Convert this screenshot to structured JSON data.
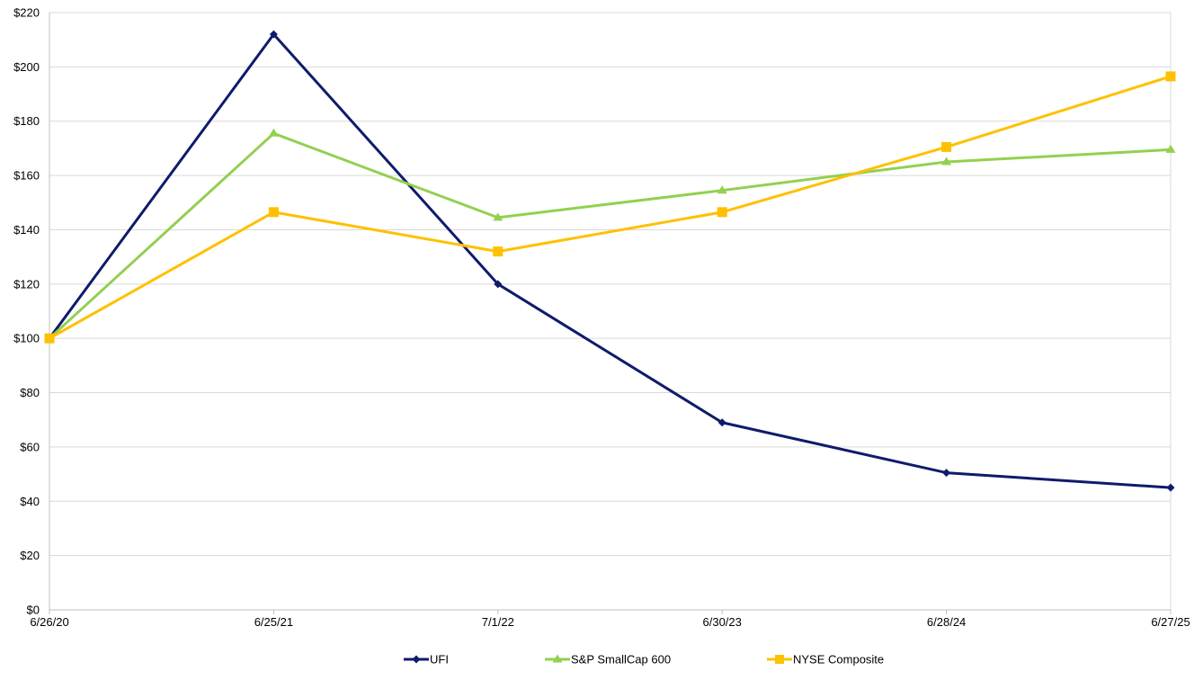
{
  "chart_data": {
    "type": "line",
    "title": "",
    "xlabel": "",
    "ylabel": "",
    "categories": [
      "6/26/20",
      "6/25/21",
      "7/1/22",
      "6/30/23",
      "6/28/24",
      "6/27/25"
    ],
    "ylim": [
      0,
      220
    ],
    "yticks": [
      0,
      20,
      40,
      60,
      80,
      100,
      120,
      140,
      160,
      180,
      200,
      220
    ],
    "ytick_labels": [
      "$0",
      "$20",
      "$40",
      "$60",
      "$80",
      "$100",
      "$120",
      "$140",
      "$160",
      "$180",
      "$200",
      "$220"
    ],
    "grid": true,
    "legend_position": "bottom",
    "series": [
      {
        "name": "UFI",
        "color": "#0f1b6b",
        "marker": "diamond",
        "values": [
          100,
          212,
          120,
          69,
          50.5,
          45
        ]
      },
      {
        "name": "S&P SmallCap 600",
        "color": "#92d050",
        "marker": "triangle",
        "values": [
          100,
          175.5,
          144.5,
          154.5,
          165,
          169.5
        ]
      },
      {
        "name": "NYSE Composite",
        "color": "#ffc000",
        "marker": "square",
        "values": [
          100,
          146.5,
          132,
          146.5,
          170.5,
          196.5
        ]
      }
    ]
  }
}
